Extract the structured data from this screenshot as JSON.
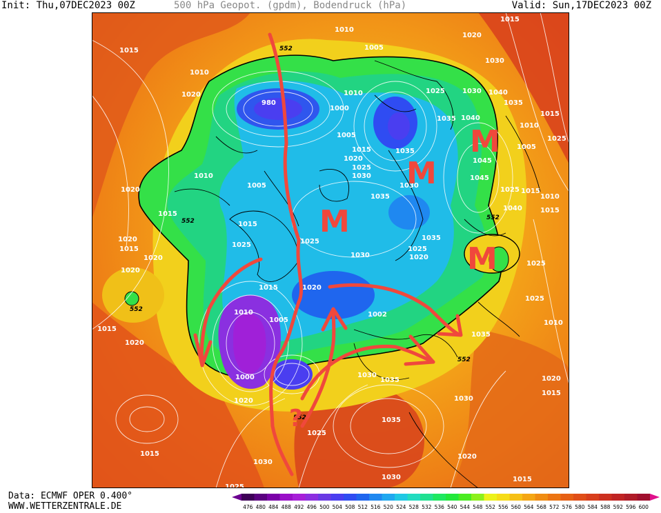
{
  "header": {
    "init": "Init: Thu,07DEC2023 00Z",
    "title": "500 hPa Geopot. (gpdm), Bodendruck (hPa)",
    "valid": "Valid: Sun,17DEC2023 00Z"
  },
  "footer": {
    "source": "Data: ECMWF OPER 0.400°",
    "site": "WWW.WETTERZENTRALE.DE"
  },
  "colorbar": {
    "ticks": [
      "476",
      "480",
      "484",
      "488",
      "492",
      "496",
      "500",
      "504",
      "508",
      "512",
      "516",
      "520",
      "524",
      "528",
      "532",
      "536",
      "540",
      "544",
      "548",
      "552",
      "556",
      "560",
      "564",
      "568",
      "572",
      "576",
      "580",
      "584",
      "588",
      "592",
      "596",
      "600"
    ],
    "colors": [
      "#3d0057",
      "#5a0080",
      "#7a00a8",
      "#9a10c8",
      "#a71fd8",
      "#8c2ee0",
      "#6a3ae4",
      "#4a3ef0",
      "#2f4cf2",
      "#1f66ee",
      "#1f88f0",
      "#1fa8f0",
      "#1fc8e4",
      "#22dcc0",
      "#20e090",
      "#1ee860",
      "#22e83a",
      "#4aec22",
      "#8cf01c",
      "#ecf21a",
      "#f6dc18",
      "#f6c016",
      "#f4a614",
      "#f08c12",
      "#ec7412",
      "#e66014",
      "#e04e18",
      "#d83e1c",
      "#cc3020",
      "#c02424",
      "#b01c28",
      "#a0102e"
    ],
    "arrow_left": "#6b0090",
    "arrow_right": "#e0108c"
  },
  "isobars": [
    "1010",
    "1005",
    "1015",
    "1020",
    "1010",
    "1030",
    "1015",
    "980",
    "1000",
    "1010",
    "1025",
    "1040",
    "1035",
    "1015",
    "1005",
    "1010",
    "1020",
    "1040",
    "1030",
    "1035",
    "1045",
    "1005",
    "1015",
    "1020",
    "1025",
    "1030",
    "1035",
    "1030",
    "1045",
    "1010",
    "1020",
    "1025",
    "1040",
    "1015",
    "552",
    "1015",
    "1010",
    "1025",
    "1035",
    "1025",
    "1020",
    "1005",
    "1015",
    "1025",
    "1035",
    "1020",
    "1030",
    "1015",
    "1025",
    "1020",
    "1015",
    "1005",
    "1002",
    "1020",
    "1025",
    "552",
    "1010",
    "1000",
    "1020",
    "1030",
    "1035",
    "552",
    "1020",
    "1015",
    "1030",
    "1015",
    "1025",
    "1035",
    "1020",
    "1030",
    "1025",
    "1015",
    "1030",
    "1015",
    "1020",
    "1025",
    "1015",
    "1010",
    "1020",
    "1035",
    "1030"
  ],
  "contour_552": [
    "552",
    "552",
    "552",
    "552",
    "552",
    "552"
  ],
  "annotations": {
    "block_labels": [
      "M",
      "M",
      "M",
      "M"
    ],
    "question_mark": "?",
    "annotation_color": "#f0483c"
  }
}
